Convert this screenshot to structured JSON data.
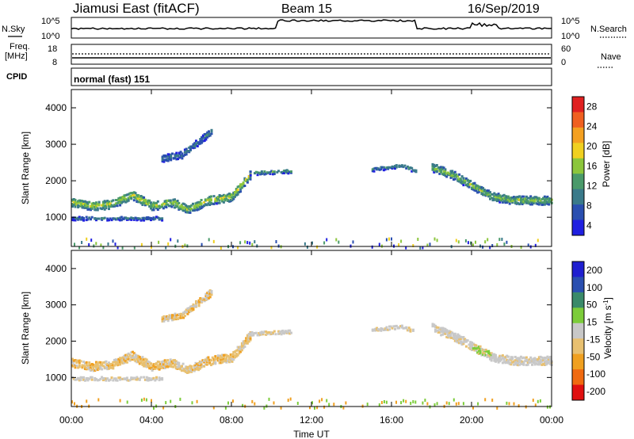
{
  "header": {
    "title": "Jiamusi East (fitACF)",
    "beam": "Beam 15",
    "date": "16/Sep/2019"
  },
  "top_panel": {
    "nsky_label": "N.Sky",
    "nsearch_label": "N.Search",
    "left_ticks": [
      "10^5",
      "10^0"
    ],
    "right_ticks": [
      "10^5",
      "10^0"
    ],
    "freq_label_1": "Freq.",
    "freq_label_2": "[MHz]",
    "freq_ticks": [
      "18",
      "8"
    ],
    "nave_label": "Nave",
    "nave_ticks": [
      "60",
      "0"
    ],
    "cpid_label": "CPID",
    "cpid_text": "normal (fast) 151"
  },
  "colors": {
    "power": [
      "#1f1fe0",
      "#2a4fb0",
      "#3a7a8a",
      "#4a9a6a",
      "#8cc63c",
      "#f0d020",
      "#f4a020",
      "#f06020",
      "#e02020"
    ],
    "velocity": [
      "#e01010",
      "#f06a10",
      "#f0a020",
      "#e8c070",
      "#c8c8c8",
      "#7ccc3a",
      "#3a8a6a",
      "#2a4fb0",
      "#1f1fd0"
    ]
  },
  "chart_data": [
    {
      "type": "heatmap",
      "name": "power",
      "ylabel": "Slant Range [km]",
      "ylim": [
        200,
        4500
      ],
      "yticks": [
        1000,
        2000,
        3000,
        4000
      ],
      "xticks": [
        "00:00",
        "04:00",
        "08:00",
        "12:00",
        "16:00",
        "20:00",
        "00:00"
      ],
      "xlim_hours": [
        0,
        24
      ],
      "colorbar": {
        "label": "Power [dB]",
        "ticks": [
          "28",
          "24",
          "20",
          "16",
          "12",
          "8",
          "4"
        ],
        "range": [
          0,
          32
        ]
      },
      "bands": [
        {
          "t0": 0.0,
          "t1": 8.9,
          "pts": [
            [
              0,
              1450
            ],
            [
              1,
              1350
            ],
            [
              2,
              1400
            ],
            [
              3,
              1650
            ],
            [
              4,
              1350
            ],
            [
              5,
              1450
            ],
            [
              5.8,
              1250
            ],
            [
              6.8,
              1500
            ],
            [
              8,
              1600
            ],
            [
              8.9,
              2200
            ]
          ],
          "width": 220,
          "level": 18
        },
        {
          "t0": 8.9,
          "t1": 11,
          "pts": [
            [
              8.9,
              2250
            ],
            [
              11,
              2300
            ]
          ],
          "width": 80,
          "level": 12
        },
        {
          "t0": 15.0,
          "t1": 17.2,
          "pts": [
            [
              15,
              2350
            ],
            [
              16.5,
              2450
            ],
            [
              17.2,
              2300
            ]
          ],
          "width": 80,
          "level": 10
        },
        {
          "t0": 18.0,
          "t1": 24.0,
          "pts": [
            [
              18,
              2400
            ],
            [
              19,
              2200
            ],
            [
              20,
              1900
            ],
            [
              21,
              1600
            ],
            [
              22,
              1500
            ],
            [
              23.5,
              1500
            ],
            [
              24,
              1500
            ]
          ],
          "width": 200,
          "level": 16
        },
        {
          "t0": 0.0,
          "t1": 4.5,
          "pts": [
            [
              0,
              1000
            ],
            [
              4.5,
              1000
            ]
          ],
          "width": 60,
          "level": 8
        },
        {
          "t0": 4.5,
          "t1": 7.0,
          "pts": [
            [
              4.5,
              2650
            ],
            [
              5.5,
              2750
            ],
            [
              6.3,
              3100
            ],
            [
              7,
              3400
            ]
          ],
          "width": 160,
          "level": 8
        }
      ]
    },
    {
      "type": "heatmap",
      "name": "velocity",
      "ylabel": "Slant Range [km]",
      "ylim": [
        200,
        4500
      ],
      "yticks": [
        1000,
        2000,
        3000,
        4000
      ],
      "xticks": [
        "00:00",
        "04:00",
        "08:00",
        "12:00",
        "16:00",
        "20:00",
        "00:00"
      ],
      "xlim_hours": [
        0,
        24
      ],
      "xlabel": "Time UT",
      "colorbar": {
        "label": "Velocity [m s^-1]",
        "ticks": [
          "200",
          "100",
          "50",
          "15",
          "-15",
          "-50",
          "-100",
          "-200"
        ]
      },
      "bands": [
        {
          "t0": 0.0,
          "t1": 8.9,
          "pts": [
            [
              0,
              1450
            ],
            [
              1,
              1350
            ],
            [
              2,
              1400
            ],
            [
              3,
              1650
            ],
            [
              4,
              1350
            ],
            [
              5,
              1450
            ],
            [
              5.8,
              1250
            ],
            [
              6.8,
              1500
            ],
            [
              8,
              1600
            ],
            [
              8.9,
              2200
            ]
          ],
          "width": 220,
          "level": -15
        },
        {
          "t0": 8.9,
          "t1": 11,
          "pts": [
            [
              8.9,
              2250
            ],
            [
              11,
              2300
            ]
          ],
          "width": 80,
          "level": 0
        },
        {
          "t0": 15.0,
          "t1": 17.2,
          "pts": [
            [
              15,
              2350
            ],
            [
              16.5,
              2450
            ],
            [
              17.2,
              2300
            ]
          ],
          "width": 80,
          "level": 0
        },
        {
          "t0": 18.0,
          "t1": 24.0,
          "pts": [
            [
              18,
              2400
            ],
            [
              19,
              2200
            ],
            [
              20,
              1900
            ],
            [
              21,
              1600
            ],
            [
              22,
              1500
            ],
            [
              23.5,
              1500
            ],
            [
              24,
              1500
            ]
          ],
          "width": 200,
          "level": 0
        },
        {
          "t0": 0.0,
          "t1": 4.5,
          "pts": [
            [
              0,
              1000
            ],
            [
              4.5,
              1000
            ]
          ],
          "width": 60,
          "level": 0
        },
        {
          "t0": 4.5,
          "t1": 7.0,
          "pts": [
            [
              4.5,
              2650
            ],
            [
              5.5,
              2750
            ],
            [
              6.3,
              3100
            ],
            [
              7,
              3400
            ]
          ],
          "width": 160,
          "level": -15
        }
      ]
    }
  ]
}
